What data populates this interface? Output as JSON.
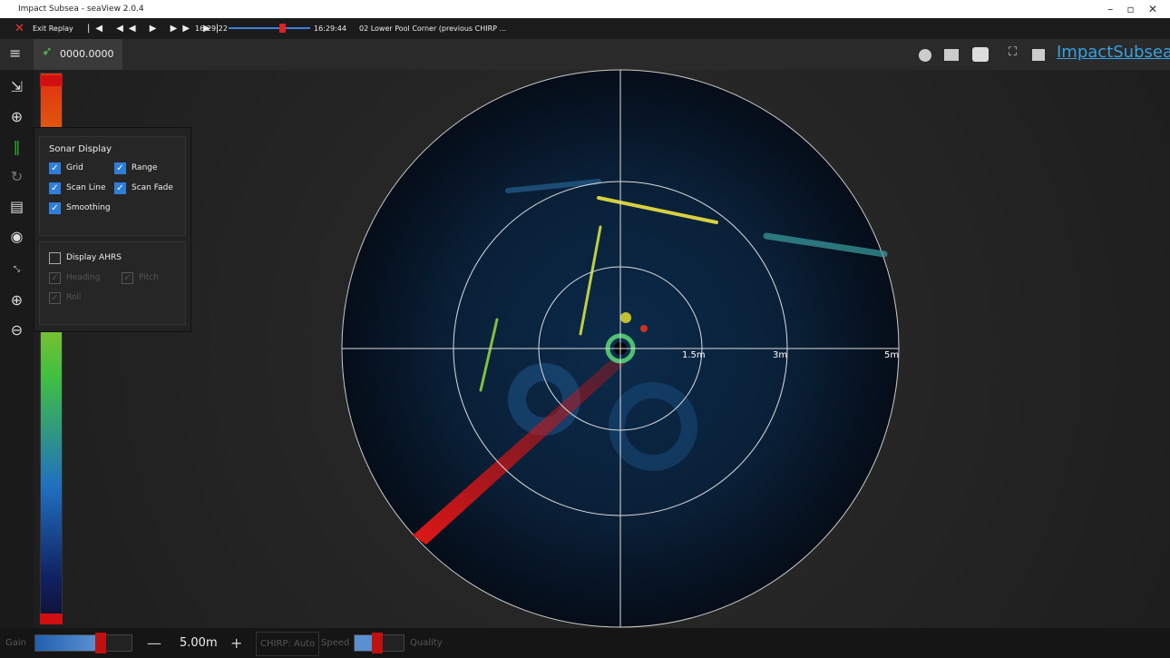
{
  "window": {
    "title": "Impact Subsea - seaView 2.0.4"
  },
  "replay_bar": {
    "exit": "Exit Replay",
    "start_time": "16:29:22",
    "end_time": "16:29:44",
    "file": "02 Lower Pool Corner (previous CHIRP ..."
  },
  "header": {
    "position": "0000.0000",
    "logo": "ImpactSubsea"
  },
  "sonar_display": {
    "title": "Sonar Display",
    "options": [
      {
        "label": "Grid",
        "checked": true
      },
      {
        "label": "Range",
        "checked": true
      },
      {
        "label": "Scan Line",
        "checked": true
      },
      {
        "label": "Scan Fade",
        "checked": true
      },
      {
        "label": "Smoothing",
        "checked": true
      }
    ]
  },
  "ahrs": {
    "label": "Display AHRS",
    "checked": false,
    "options": [
      {
        "label": "Heading",
        "checked": true
      },
      {
        "label": "Pitch",
        "checked": true
      },
      {
        "label": "Roll",
        "checked": true
      }
    ]
  },
  "range_labels": [
    "1.5m",
    "3m",
    "5m"
  ],
  "bottom_bar": {
    "gain": "Gain",
    "range": "5.00m",
    "chirp": "CHIRP: Auto",
    "speed": "Speed",
    "quality": "Quality"
  }
}
